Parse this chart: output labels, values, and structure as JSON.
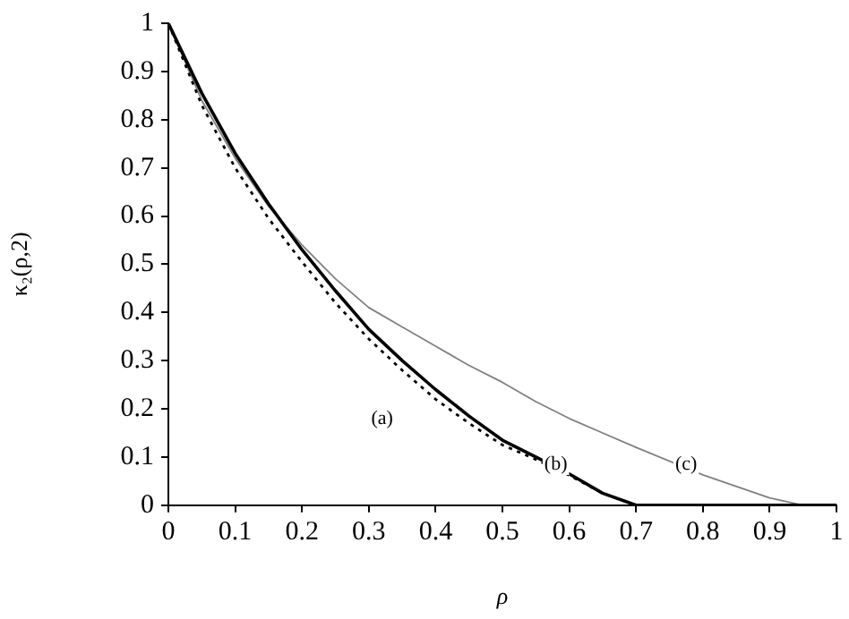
{
  "chart_data": {
    "type": "line",
    "xlabel": "ρ",
    "ylabel": "κ₂(ρ,2)",
    "xlim": [
      0,
      1
    ],
    "ylim": [
      0,
      1
    ],
    "xticks": [
      0,
      0.1,
      0.2,
      0.3,
      0.4,
      0.5,
      0.6,
      0.7,
      0.8,
      0.9,
      1
    ],
    "yticks": [
      0,
      0.1,
      0.2,
      0.3,
      0.4,
      0.5,
      0.6,
      0.7,
      0.8,
      0.9,
      1
    ],
    "grid": false,
    "legend": false,
    "marker": "none",
    "x": [
      0,
      0.05,
      0.1,
      0.15,
      0.2,
      0.25,
      0.3,
      0.35,
      0.4,
      0.45,
      0.5,
      0.55,
      0.6,
      0.65,
      0.7,
      0.8,
      0.9,
      0.95,
      1
    ],
    "series": [
      {
        "color": "#000000",
        "line_style": "solid",
        "values": [
          1,
          0.855,
          0.73,
          0.625,
          0.53,
          0.445,
          0.365,
          0.3,
          0.24,
          0.185,
          0.135,
          0.1,
          0.065,
          0.025,
          0,
          0,
          0,
          0,
          0
        ]
      },
      {
        "color": "#000000",
        "line_style": "dotted",
        "values": [
          1,
          0.83,
          0.7,
          0.595,
          0.505,
          0.42,
          0.345,
          0.28,
          0.22,
          0.17,
          0.125,
          0.095,
          0.062,
          0.025,
          0,
          0,
          0,
          0,
          0
        ]
      },
      {
        "color": "#808080",
        "line_style": "solid",
        "values": [
          1,
          0.84,
          0.72,
          0.62,
          0.54,
          0.47,
          0.41,
          0.37,
          0.33,
          0.29,
          0.255,
          0.215,
          0.18,
          0.15,
          0.12,
          0.063,
          0.015,
          0,
          0
        ]
      }
    ],
    "annotations": [
      {
        "text": "(a)",
        "x": 0.32,
        "y": 0.18
      },
      {
        "text": "(b)",
        "x": 0.58,
        "y": 0.085
      },
      {
        "text": "(c)",
        "x": 0.775,
        "y": 0.085
      }
    ]
  }
}
